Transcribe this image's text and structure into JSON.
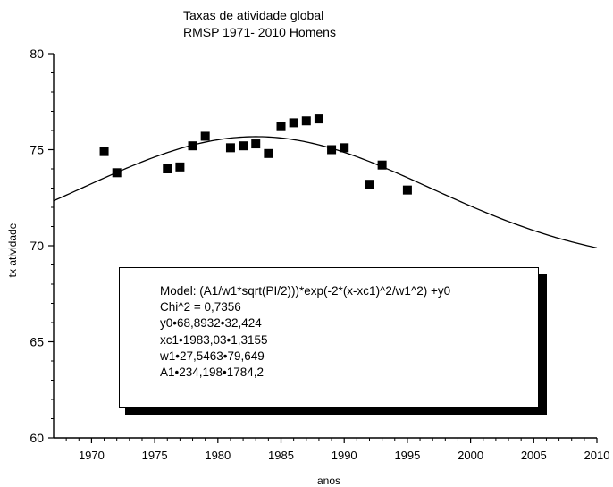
{
  "chart_data": {
    "type": "scatter",
    "title": "Taxas de atividade global",
    "subtitle": "RMSP 1971- 2010  Homens",
    "xlabel": "anos",
    "ylabel": "tx atividade",
    "xlim": [
      1967,
      2010
    ],
    "ylim": [
      60,
      80
    ],
    "x_ticks": [
      "1970",
      "1975",
      "1980",
      "1985",
      "1990",
      "1995",
      "2000",
      "2005",
      "2010"
    ],
    "y_ticks": [
      "60",
      "65",
      "70",
      "75",
      "80"
    ],
    "grid": false,
    "series": [
      {
        "marker": "square",
        "points": [
          {
            "x": 1971,
            "y": 74.9
          },
          {
            "x": 1972,
            "y": 73.8
          },
          {
            "x": 1976,
            "y": 74.0
          },
          {
            "x": 1977,
            "y": 74.1
          },
          {
            "x": 1978,
            "y": 75.2
          },
          {
            "x": 1979,
            "y": 75.7
          },
          {
            "x": 1981,
            "y": 75.1
          },
          {
            "x": 1982,
            "y": 75.2
          },
          {
            "x": 1983,
            "y": 75.3
          },
          {
            "x": 1984,
            "y": 74.8
          },
          {
            "x": 1985,
            "y": 76.2
          },
          {
            "x": 1986,
            "y": 76.4
          },
          {
            "x": 1987,
            "y": 76.5
          },
          {
            "x": 1988,
            "y": 76.6
          },
          {
            "x": 1989,
            "y": 75.0
          },
          {
            "x": 1990,
            "y": 75.1
          },
          {
            "x": 1992,
            "y": 73.2
          },
          {
            "x": 1993,
            "y": 74.2
          },
          {
            "x": 1995,
            "y": 72.9
          }
        ]
      }
    ],
    "fit": {
      "model": "gauss",
      "y0": 68.8932,
      "xc": 1983.03,
      "w": 27.5463,
      "A": 234.198
    },
    "annotation_lines": [
      "Model: (A1/w1*sqrt(PI/2)))*exp(-2*(x-xc1)^2/w1^2) +y0",
      "Chi^2 = 0,7356",
      "y0•68,8932•32,424",
      "xc1•1983,03•1,3155",
      "w1•27,5463•79,649",
      "A1•234,198•1784,2"
    ]
  }
}
